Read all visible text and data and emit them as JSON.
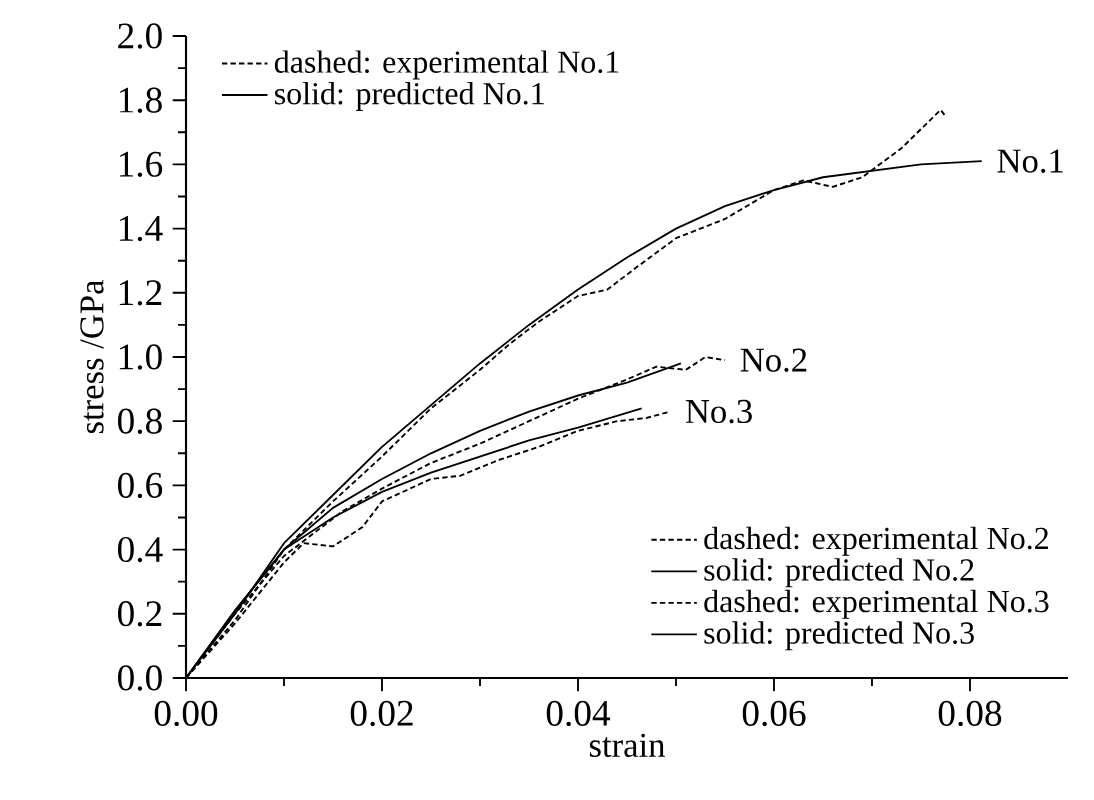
{
  "chart_data": {
    "type": "line",
    "xlabel": "strain",
    "ylabel": "stress /GPa",
    "xlim": [
      0,
      0.09
    ],
    "ylim": [
      0,
      2.0
    ],
    "xticks": [
      {
        "value": 0,
        "label": "0.00"
      },
      {
        "value": 0.02,
        "label": "0.02"
      },
      {
        "value": 0.04,
        "label": "0.04"
      },
      {
        "value": 0.06,
        "label": "0.06"
      },
      {
        "value": 0.08,
        "label": "0.08"
      }
    ],
    "yticks": [
      {
        "value": 0,
        "label": "0.0"
      },
      {
        "value": 0.2,
        "label": "0.2"
      },
      {
        "value": 0.4,
        "label": "0.4"
      },
      {
        "value": 0.6,
        "label": "0.6"
      },
      {
        "value": 0.8,
        "label": "0.8"
      },
      {
        "value": 1.0,
        "label": "1.0"
      },
      {
        "value": 1.2,
        "label": "1.2"
      },
      {
        "value": 1.4,
        "label": "1.4"
      },
      {
        "value": 1.6,
        "label": "1.6"
      },
      {
        "value": 1.8,
        "label": "1.8"
      },
      {
        "value": 2.0,
        "label": "2.0"
      }
    ],
    "grid": false,
    "legend": "top left",
    "marker": "none",
    "series": [
      {
        "name": "dashed: experimental No.1",
        "color": "#000000",
        "line_style": "dashed",
        "x": [
          0,
          0.005,
          0.01,
          0.015,
          0.02,
          0.025,
          0.03,
          0.033,
          0.036,
          0.04,
          0.043,
          0.046,
          0.05,
          0.055,
          0.06,
          0.063,
          0.066,
          0.069,
          0.073,
          0.077,
          0.0775
        ],
        "values": [
          0,
          0.18,
          0.4,
          0.55,
          0.69,
          0.84,
          0.96,
          1.04,
          1.11,
          1.19,
          1.21,
          1.28,
          1.37,
          1.43,
          1.52,
          1.55,
          1.53,
          1.56,
          1.65,
          1.77,
          1.75
        ]
      },
      {
        "name": "solid: predicted No.1",
        "color": "#000000",
        "line_style": "solid",
        "x": [
          0,
          0.005,
          0.01,
          0.015,
          0.02,
          0.025,
          0.03,
          0.035,
          0.04,
          0.045,
          0.05,
          0.055,
          0.06,
          0.065,
          0.07,
          0.075,
          0.0812
        ],
        "values": [
          0,
          0.2,
          0.42,
          0.57,
          0.72,
          0.85,
          0.98,
          1.1,
          1.21,
          1.31,
          1.4,
          1.47,
          1.52,
          1.56,
          1.58,
          1.6,
          1.61
        ]
      },
      {
        "name": "dashed: experimental No.2",
        "color": "#000000",
        "line_style": "dashed",
        "x": [
          0,
          0.005,
          0.01,
          0.013,
          0.016,
          0.02,
          0.025,
          0.03,
          0.035,
          0.04,
          0.045,
          0.048,
          0.051,
          0.053,
          0.055
        ],
        "values": [
          0,
          0.2,
          0.38,
          0.45,
          0.52,
          0.59,
          0.67,
          0.73,
          0.8,
          0.87,
          0.93,
          0.97,
          0.96,
          1.0,
          0.99
        ]
      },
      {
        "name": "solid: predicted No.2",
        "color": "#000000",
        "line_style": "solid",
        "x": [
          0,
          0.005,
          0.01,
          0.015,
          0.02,
          0.025,
          0.03,
          0.035,
          0.04,
          0.045,
          0.0505
        ],
        "values": [
          0,
          0.21,
          0.4,
          0.53,
          0.62,
          0.7,
          0.77,
          0.83,
          0.88,
          0.92,
          0.98
        ]
      },
      {
        "name": "dashed: experimental No.3",
        "color": "#000000",
        "line_style": "dashed",
        "x": [
          0,
          0.005,
          0.01,
          0.012,
          0.015,
          0.018,
          0.02,
          0.025,
          0.028,
          0.032,
          0.036,
          0.04,
          0.044,
          0.047,
          0.0494
        ],
        "values": [
          0,
          0.17,
          0.36,
          0.42,
          0.41,
          0.47,
          0.55,
          0.62,
          0.63,
          0.68,
          0.72,
          0.77,
          0.8,
          0.81,
          0.83
        ]
      },
      {
        "name": "solid: predicted No.3",
        "color": "#000000",
        "line_style": "solid",
        "x": [
          0,
          0.005,
          0.01,
          0.015,
          0.02,
          0.025,
          0.03,
          0.035,
          0.04,
          0.0465
        ],
        "values": [
          0,
          0.21,
          0.4,
          0.5,
          0.58,
          0.64,
          0.69,
          0.74,
          0.78,
          0.84
        ]
      }
    ],
    "annotations": [
      {
        "text": "No.1",
        "x": 0.0812,
        "y": 1.61
      },
      {
        "text": "No.2",
        "x": 0.055,
        "y": 0.99
      },
      {
        "text": "No.3",
        "x": 0.0494,
        "y": 0.83
      }
    ]
  }
}
